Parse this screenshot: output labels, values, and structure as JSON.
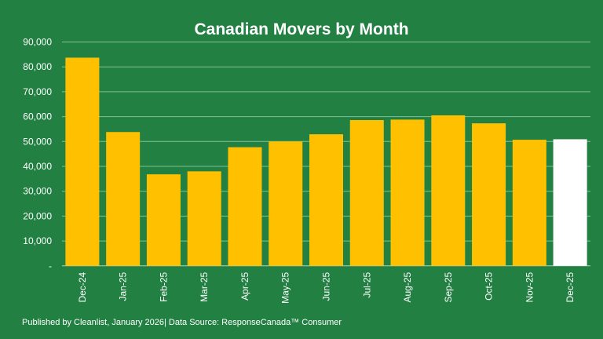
{
  "chart_data": {
    "type": "bar",
    "title": "Canadian Movers by Month",
    "xlabel": "",
    "ylabel": "",
    "ylim": [
      0,
      90000
    ],
    "yticks": [
      "-",
      "10,000",
      "20,000",
      "30,000",
      "40,000",
      "50,000",
      "60,000",
      "70,000",
      "80,000",
      "90,000"
    ],
    "grid": true,
    "categories": [
      "Dec-24",
      "Jan-25",
      "Feb-25",
      "Mar-25",
      "Apr-25",
      "May-25",
      "Jun-25",
      "Jul-25",
      "Aug-25",
      "Sep-25",
      "Oct-25",
      "Nov-25",
      "Dec-25"
    ],
    "values": [
      83700,
      53800,
      36800,
      38000,
      47700,
      50000,
      52900,
      58600,
      58800,
      60500,
      57300,
      50700,
      50900
    ],
    "bar_color": "#FFC000",
    "highlight_color": "#FFFFFF",
    "highlight_index": 12
  },
  "footer": "Published by Cleanlist, January 2026| Data Source: ResponseCanada™ Consumer"
}
